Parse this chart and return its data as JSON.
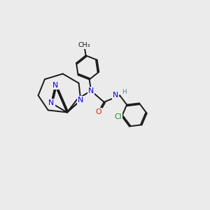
{
  "background_color": "#ebebeb",
  "bond_color": "#1a1a1a",
  "atom_colors": {
    "N": "#0000ee",
    "O": "#dd2200",
    "Cl": "#228822",
    "H": "#448888",
    "C": "#1a1a1a"
  },
  "figsize": [
    3.0,
    3.0
  ],
  "dpi": 100
}
